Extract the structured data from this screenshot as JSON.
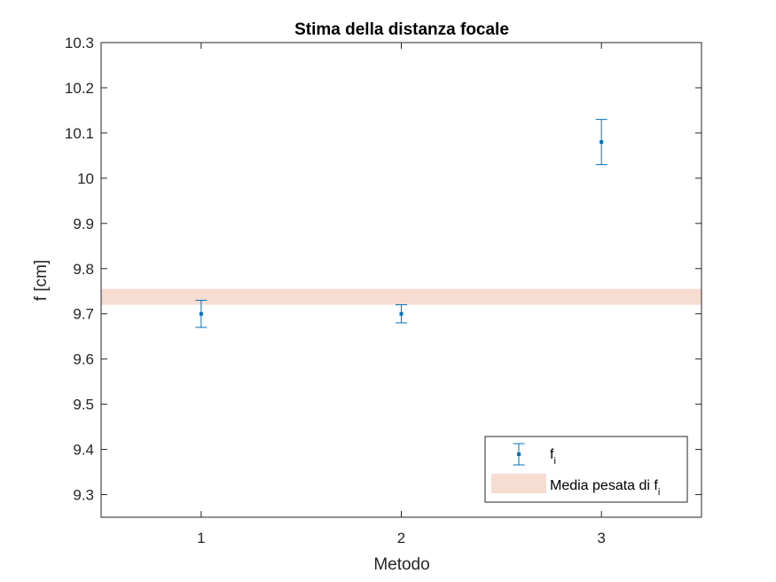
{
  "chart_data": {
    "type": "scatter",
    "title": "Stima della distanza focale",
    "xlabel": "Metodo",
    "ylabel": "f [cm]",
    "xlim": [
      0.5,
      3.5
    ],
    "ylim": [
      9.25,
      10.3
    ],
    "x_ticks": [
      1,
      2,
      3
    ],
    "y_ticks": [
      9.3,
      9.4,
      9.5,
      9.6,
      9.7,
      9.8,
      9.9,
      10,
      10.1,
      10.2,
      10.3
    ],
    "grid": false,
    "legend_position": "bottom-right",
    "series": [
      {
        "name": "f",
        "name_subscript": "i",
        "kind": "errorbar",
        "color": "#0072BD",
        "x": [
          1,
          2,
          3
        ],
        "y": [
          9.7,
          9.7,
          10.08
        ],
        "error": [
          0.03,
          0.02,
          0.05
        ]
      }
    ],
    "band": {
      "name": "Media pesata di f",
      "name_subscript": "i",
      "color": "#F6DCD1",
      "y_low": 9.72,
      "y_high": 9.755
    }
  }
}
